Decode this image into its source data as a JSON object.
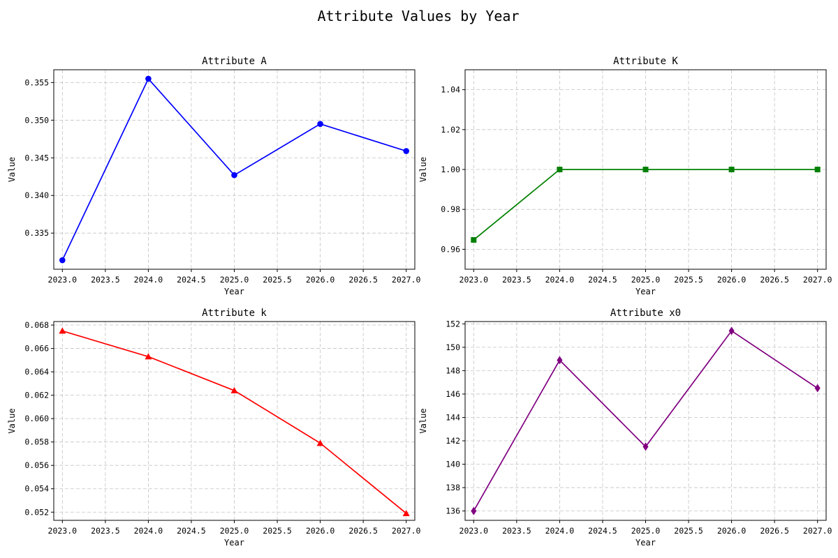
{
  "figure": {
    "title": "Attribute Values by Year"
  },
  "chart_data": [
    {
      "type": "line",
      "title": "Attribute A",
      "xlabel": "Year",
      "ylabel": "Value",
      "x": [
        2023,
        2024,
        2025,
        2026,
        2027
      ],
      "xticks": [
        "2023.0",
        "2023.5",
        "2024.0",
        "2024.5",
        "2025.0",
        "2025.5",
        "2026.0",
        "2026.5",
        "2027.0"
      ],
      "yticks": [
        "0.335",
        "0.340",
        "0.345",
        "0.350",
        "0.355"
      ],
      "xlim": [
        2022.9,
        2027.1
      ],
      "ylim": [
        0.3302,
        0.3567
      ],
      "grid": true,
      "marker": "circle",
      "color": "#0000ff",
      "series": [
        {
          "values": [
            0.3314,
            0.3555,
            0.3427,
            0.3495,
            0.3459
          ]
        }
      ]
    },
    {
      "type": "line",
      "title": "Attribute K",
      "xlabel": "Year",
      "ylabel": "Value",
      "x": [
        2023,
        2024,
        2025,
        2026,
        2027
      ],
      "xticks": [
        "2023.0",
        "2023.5",
        "2024.0",
        "2024.5",
        "2025.0",
        "2025.5",
        "2026.0",
        "2026.5",
        "2027.0"
      ],
      "yticks": [
        "0.96",
        "0.98",
        "1.00",
        "1.02",
        "1.04"
      ],
      "xlim": [
        2022.9,
        2027.1
      ],
      "ylim": [
        0.95,
        1.05
      ],
      "grid": true,
      "marker": "square",
      "color": "#008000",
      "series": [
        {
          "values": [
            0.9647,
            1.0,
            1.0,
            1.0,
            1.0
          ]
        }
      ]
    },
    {
      "type": "line",
      "title": "Attribute k",
      "xlabel": "Year",
      "ylabel": "Value",
      "x": [
        2023,
        2024,
        2025,
        2026,
        2027
      ],
      "xticks": [
        "2023.0",
        "2023.5",
        "2024.0",
        "2024.5",
        "2025.0",
        "2025.5",
        "2026.0",
        "2026.5",
        "2027.0"
      ],
      "yticks": [
        "0.052",
        "0.054",
        "0.056",
        "0.058",
        "0.060",
        "0.062",
        "0.064",
        "0.066",
        "0.068"
      ],
      "xlim": [
        2022.9,
        2027.1
      ],
      "ylim": [
        0.0513,
        0.0683
      ],
      "grid": true,
      "marker": "triangle",
      "color": "#ff0000",
      "series": [
        {
          "values": [
            0.0675,
            0.0653,
            0.0624,
            0.0579,
            0.0519
          ]
        }
      ]
    },
    {
      "type": "line",
      "title": "Attribute x0",
      "xlabel": "Year",
      "ylabel": "Value",
      "x": [
        2023,
        2024,
        2025,
        2026,
        2027
      ],
      "xticks": [
        "2023.0",
        "2023.5",
        "2024.0",
        "2024.5",
        "2025.0",
        "2025.5",
        "2026.0",
        "2026.5",
        "2027.0"
      ],
      "yticks": [
        "136",
        "138",
        "140",
        "142",
        "144",
        "146",
        "148",
        "150",
        "152"
      ],
      "xlim": [
        2022.9,
        2027.1
      ],
      "ylim": [
        135.2,
        152.2
      ],
      "grid": true,
      "marker": "diamond",
      "color": "#800080",
      "series": [
        {
          "values": [
            136.0,
            148.9,
            141.5,
            151.4,
            146.5
          ]
        }
      ]
    }
  ]
}
